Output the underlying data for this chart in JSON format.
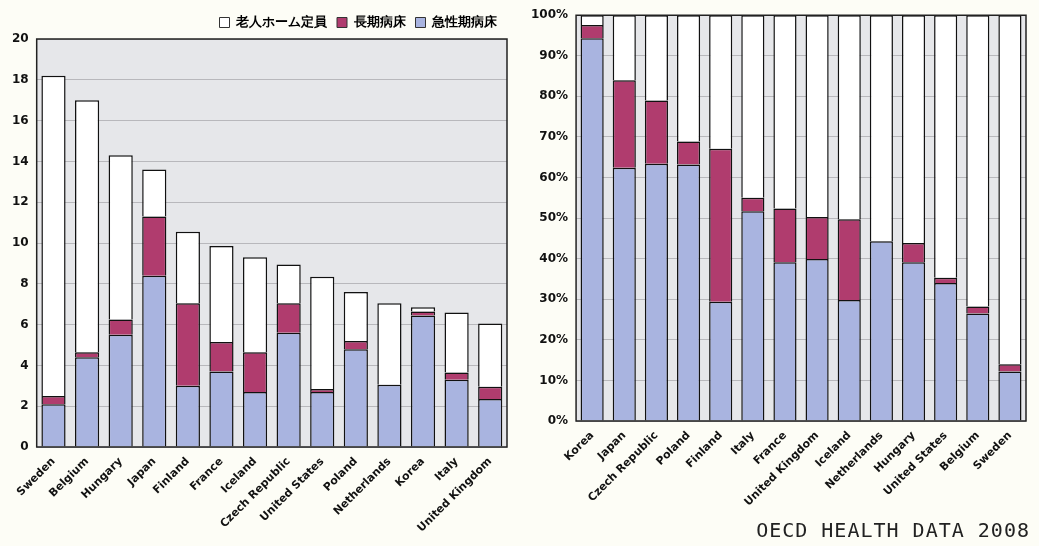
{
  "chart_data": [
    {
      "type": "bar",
      "stacked": true,
      "categories": [
        "Sweden",
        "Belgium",
        "Hungary",
        "Japan",
        "Finland",
        "France",
        "Iceland",
        "Czech Republic",
        "United States",
        "Poland",
        "Netherlands",
        "Korea",
        "Italy",
        "United Kingdom"
      ],
      "series": [
        {
          "name": "急性期病床",
          "color": "#a9b4e0",
          "values": [
            2.1,
            4.4,
            5.5,
            8.4,
            3.0,
            3.7,
            2.7,
            5.6,
            2.7,
            4.8,
            3.05,
            6.45,
            3.3,
            2.35
          ]
        },
        {
          "name": "長期病床",
          "color": "#b03c6e",
          "values": [
            0.4,
            0.25,
            0.75,
            2.9,
            4.05,
            1.45,
            1.95,
            1.45,
            0.15,
            0.4,
            0,
            0.2,
            0.35,
            0.6
          ]
        },
        {
          "name": "老人ホーム定員",
          "color": "#ffffff",
          "values": [
            15.7,
            12.35,
            8.05,
            2.3,
            3.5,
            4.7,
            4.65,
            1.9,
            5.5,
            2.4,
            4.0,
            0.2,
            2.95,
            3.1
          ]
        }
      ],
      "ylim": [
        0,
        20
      ],
      "yticks": [
        0,
        2,
        4,
        6,
        8,
        10,
        12,
        14,
        16,
        18,
        20
      ],
      "grid": "y",
      "legend": "top right"
    },
    {
      "type": "bar",
      "stacked": true,
      "categories": [
        "Korea",
        "Japan",
        "Czech Republic",
        "Poland",
        "Finland",
        "Italy",
        "France",
        "United Kingdom",
        "Iceland",
        "Netherlands",
        "Hungary",
        "United States",
        "Belgium",
        "Sweden"
      ],
      "series": [
        {
          "color": "#a9b4e0",
          "values": [
            94.3,
            62.4,
            63.4,
            63.2,
            29.4,
            51.7,
            39.1,
            39.9,
            29.8,
            44.3,
            39.1,
            34.0,
            26.5,
            12.2
          ]
        },
        {
          "color": "#b03c6e",
          "values": [
            3.3,
            21.6,
            15.6,
            5.7,
            37.7,
            3.3,
            13.3,
            10.4,
            19.9,
            0,
            4.8,
            1.3,
            1.7,
            1.8
          ]
        },
        {
          "color": "#ffffff",
          "values": [
            2.4,
            16.0,
            21.0,
            31.1,
            32.9,
            45.0,
            47.6,
            49.7,
            50.3,
            55.7,
            56.1,
            64.7,
            71.8,
            86.0
          ]
        }
      ],
      "ylim": [
        0,
        100
      ],
      "yticks": [
        {
          "value": 0,
          "label": "0%"
        },
        {
          "value": 10,
          "label": "10%"
        },
        {
          "value": 20,
          "label": "20%"
        },
        {
          "value": 30,
          "label": "30%"
        },
        {
          "value": 40,
          "label": "40%"
        },
        {
          "value": 50,
          "label": "50%"
        },
        {
          "value": 60,
          "label": "60%"
        },
        {
          "value": 70,
          "label": "70%"
        },
        {
          "value": 80,
          "label": "80%"
        },
        {
          "value": 90,
          "label": "90%"
        },
        {
          "value": 100,
          "label": "100%"
        }
      ],
      "grid": "y",
      "legend": false,
      "annotations": [
        "OECD HEALTH DATA 2008"
      ]
    }
  ]
}
